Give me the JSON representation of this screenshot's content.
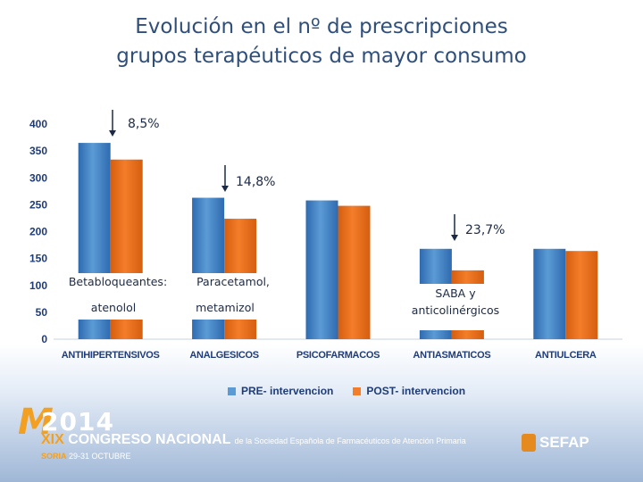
{
  "title": {
    "line1": "Evolución en el nº de prescripciones",
    "line2": "grupos terapéuticos de mayor consumo"
  },
  "colors": {
    "pre": "#5b9bd5",
    "pre_dark": "#2e6ab0",
    "post": "#f47d2a",
    "post_dark": "#d55e0f",
    "title": "#2f4f7a",
    "axis_text": "#1f3c78"
  },
  "chart_data": {
    "type": "bar",
    "title": "Evolución en el nº de prescripciones grupos terapéuticos de mayor consumo",
    "xlabel": "",
    "ylabel": "",
    "ylim": [
      0,
      400
    ],
    "yticks": [
      0,
      50,
      100,
      150,
      200,
      250,
      300,
      350,
      400
    ],
    "grid": false,
    "legend_position": "bottom",
    "categories": [
      "ANTIHIPERTENSIVOS",
      "ANALGESICOS",
      "PSICOFARMACOS",
      "ANTIASMATICOS",
      "ANTIULCERA"
    ],
    "series": [
      {
        "name": "PRE- intervencion",
        "values": [
          365,
          263,
          258,
          168,
          168
        ]
      },
      {
        "name": "POST- intervencion",
        "values": [
          334,
          224,
          248,
          128,
          164
        ]
      }
    ],
    "annotations": [
      {
        "category_index": 0,
        "percent": "8,5%",
        "line1": "Betabloqueantes:",
        "line2": "atenolol"
      },
      {
        "category_index": 1,
        "percent": "14,8%",
        "line1": "Paracetamol,",
        "line2": "metamizol"
      },
      {
        "category_index": 3,
        "percent": "23,7%",
        "line1": "SABA y",
        "line2": "anticolinérgicos"
      }
    ]
  },
  "footer": {
    "logo_letter": "M",
    "year": "2014",
    "roman": "XIX",
    "congress": "CONGRESO NACIONAL",
    "congress_sub": "de la Sociedad Española de Farmacéuticos de Atención Primaria",
    "city": "SORIA",
    "dates": "29-31 OCTUBRE",
    "sefap": "SEFAP"
  }
}
